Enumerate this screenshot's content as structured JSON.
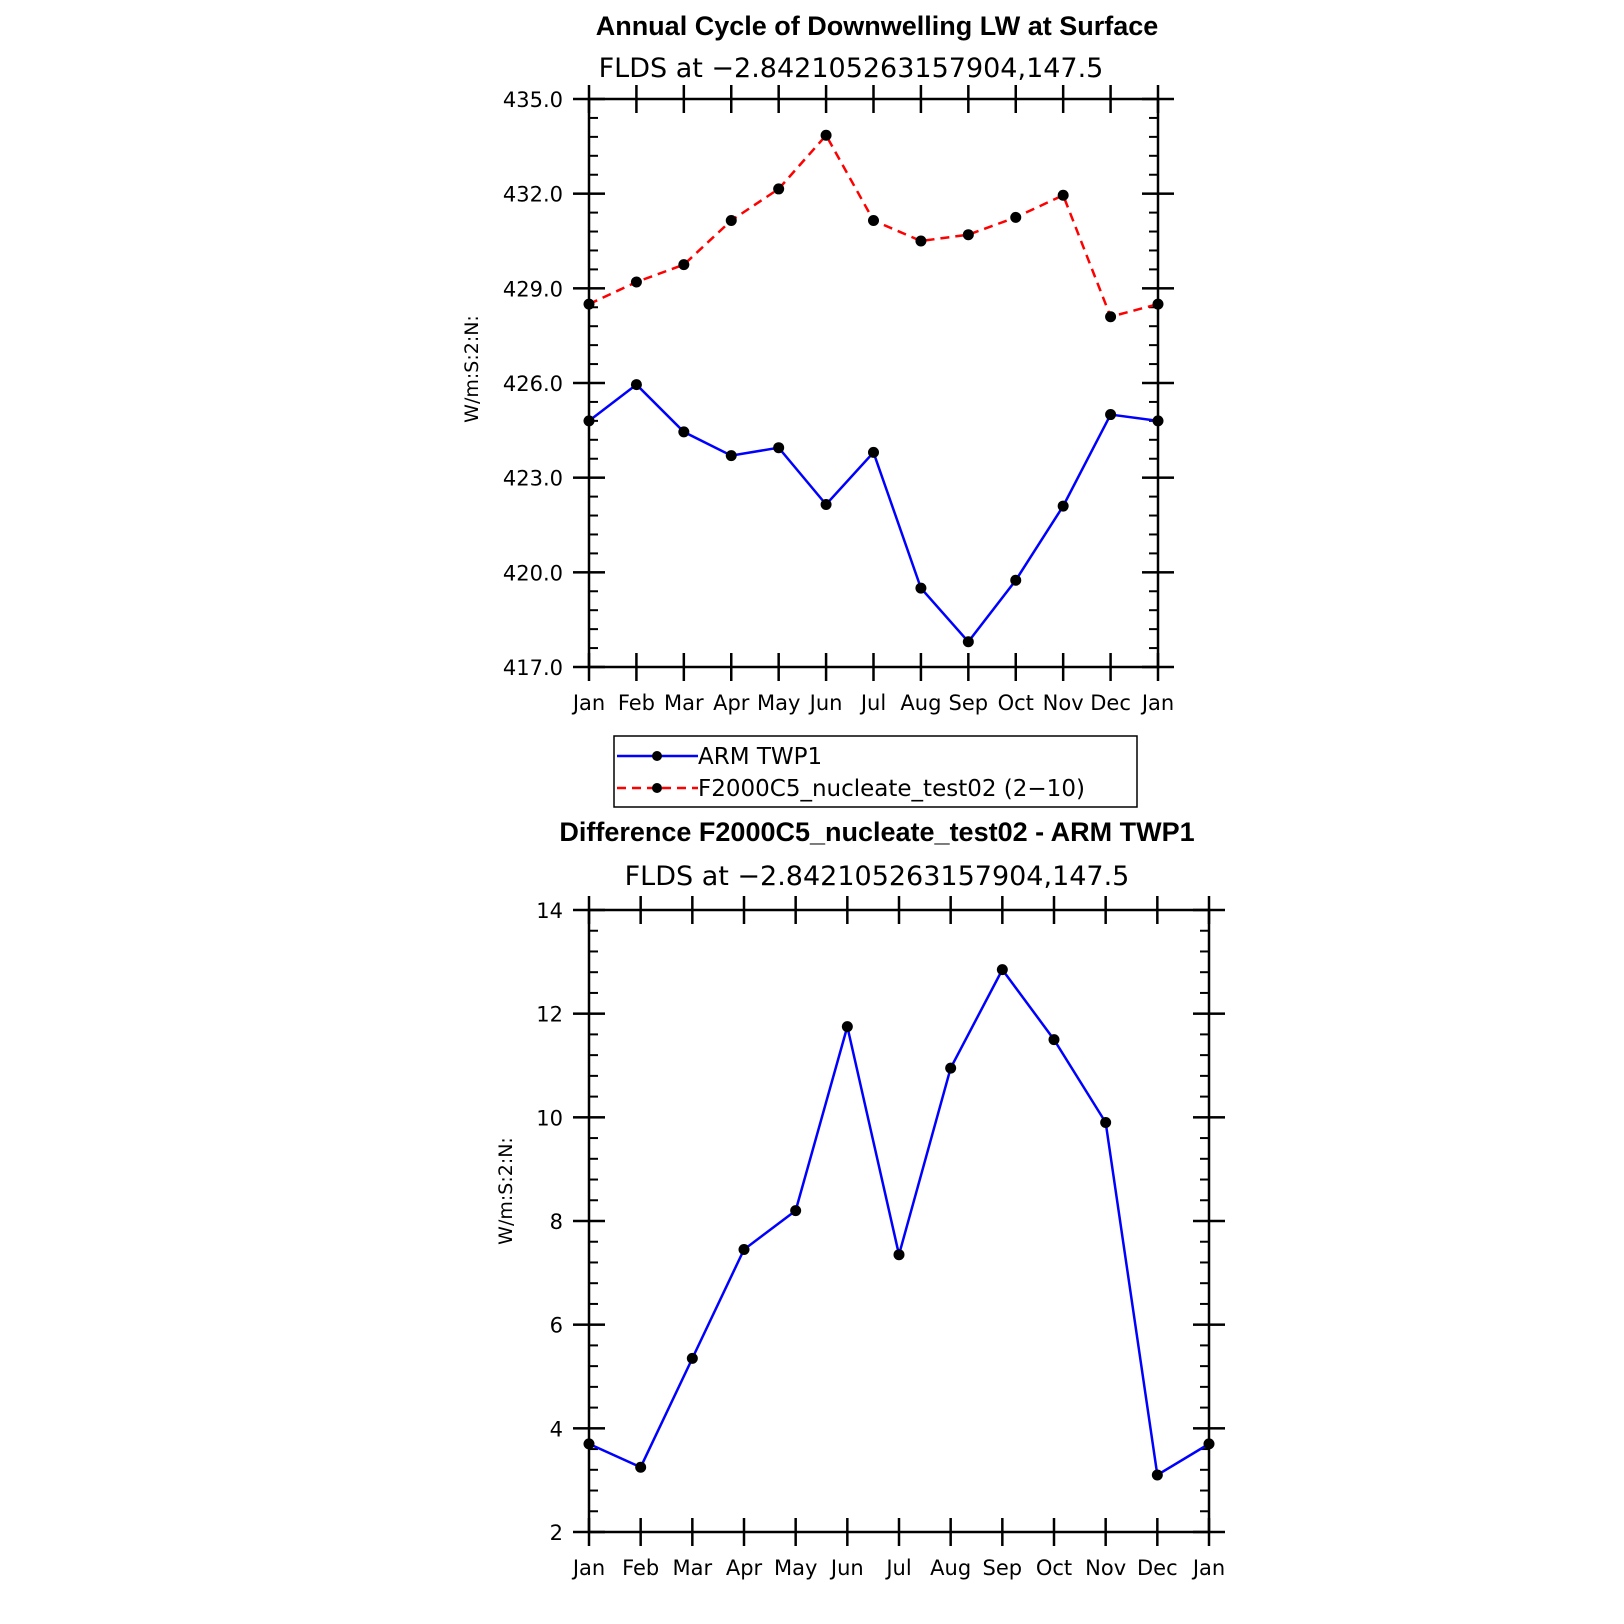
{
  "chart_data": [
    {
      "type": "line",
      "title": "Annual Cycle of Downwelling LW at Surface",
      "subtitle": "FLDS at −2.842105263157904,147.5",
      "ylabel": "W/m:S:2:N:",
      "categories": [
        "Jan",
        "Feb",
        "Mar",
        "Apr",
        "May",
        "Jun",
        "Jul",
        "Aug",
        "Sep",
        "Oct",
        "Nov",
        "Dec",
        "Jan"
      ],
      "ylim": [
        417.0,
        435.0
      ],
      "yticks": [
        "417.0",
        "420.0",
        "423.0",
        "426.0",
        "429.0",
        "432.0",
        "435.0"
      ],
      "series": [
        {
          "name": "ARM TWP1",
          "color": "#0000ff",
          "dash": "solid",
          "values": [
            424.8,
            425.95,
            424.45,
            423.7,
            423.95,
            422.15,
            423.8,
            419.5,
            417.8,
            419.75,
            422.1,
            425.0,
            424.8
          ]
        },
        {
          "name": "F2000C5_nucleate_test02 (2−10)",
          "color": "#ff0000",
          "dash": "dashed",
          "values": [
            428.5,
            429.2,
            429.75,
            431.15,
            432.15,
            433.85,
            431.15,
            430.5,
            430.7,
            431.25,
            431.95,
            428.1,
            428.5
          ]
        }
      ]
    },
    {
      "type": "line",
      "title": "Difference F2000C5_nucleate_test02 - ARM TWP1",
      "subtitle": "FLDS at −2.842105263157904,147.5",
      "ylabel": "W/m:S:2:N:",
      "categories": [
        "Jan",
        "Feb",
        "Mar",
        "Apr",
        "May",
        "Jun",
        "Jul",
        "Aug",
        "Sep",
        "Oct",
        "Nov",
        "Dec",
        "Jan"
      ],
      "ylim": [
        2,
        14
      ],
      "yticks": [
        "2",
        "4",
        "6",
        "8",
        "10",
        "12",
        "14"
      ],
      "series": [
        {
          "color": "#0000ff",
          "dash": "solid",
          "values": [
            3.7,
            3.25,
            5.35,
            7.45,
            8.2,
            11.75,
            7.35,
            10.95,
            12.85,
            11.5,
            9.9,
            3.1,
            3.7
          ]
        }
      ]
    }
  ]
}
